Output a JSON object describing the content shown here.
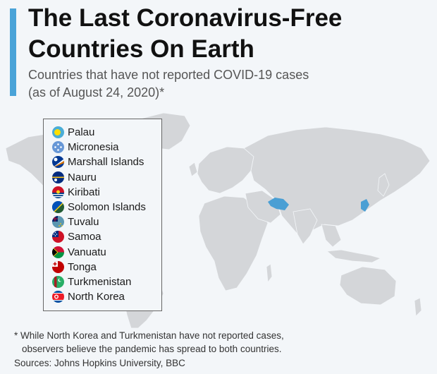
{
  "header": {
    "title_line1": "The Last Coronavirus-Free",
    "title_line2": "Countries On Earth",
    "subtitle_line1": "Countries that have not reported COVID-19 cases",
    "subtitle_line2": "(as of August 24, 2020)*"
  },
  "colors": {
    "accent": "#4aa3d8",
    "land": "#d4d6d9",
    "highlight": "#4a9fd4",
    "background": "#f3f6f9"
  },
  "legend": {
    "items": [
      {
        "name": "Palau",
        "icon": "palau-flag-icon"
      },
      {
        "name": "Micronesia",
        "icon": "micronesia-flag-icon"
      },
      {
        "name": "Marshall Islands",
        "icon": "marshall-islands-flag-icon"
      },
      {
        "name": "Nauru",
        "icon": "nauru-flag-icon"
      },
      {
        "name": "Kiribati",
        "icon": "kiribati-flag-icon"
      },
      {
        "name": "Solomon Islands",
        "icon": "solomon-islands-flag-icon"
      },
      {
        "name": "Tuvalu",
        "icon": "tuvalu-flag-icon"
      },
      {
        "name": "Samoa",
        "icon": "samoa-flag-icon"
      },
      {
        "name": "Vanuatu",
        "icon": "vanuatu-flag-icon"
      },
      {
        "name": "Tonga",
        "icon": "tonga-flag-icon"
      },
      {
        "name": "Turkmenistan",
        "icon": "turkmenistan-flag-icon"
      },
      {
        "name": "North Korea",
        "icon": "north-korea-flag-icon"
      }
    ]
  },
  "footnote": {
    "line1": "* While North Korea and Turkmenistan have not reported cases,",
    "line2": "observers believe the pandemic has spread to both countries."
  },
  "sources": "Sources: Johns Hopkins University, BBC"
}
